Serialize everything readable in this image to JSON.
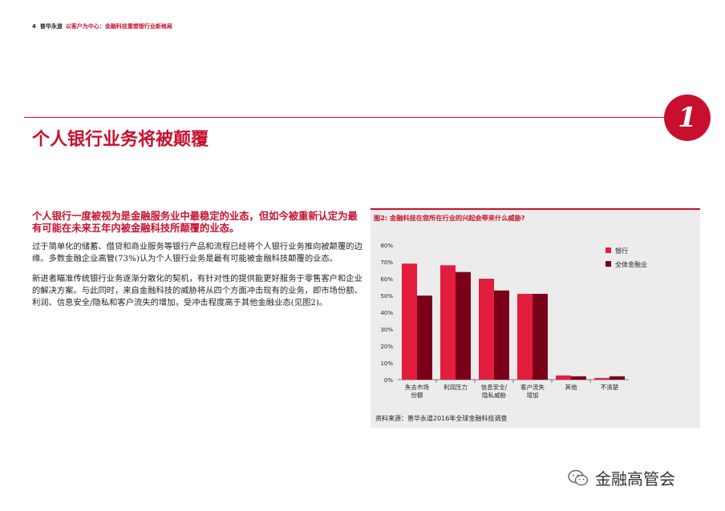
{
  "header": {
    "page_number": "4",
    "brand": "普华永道",
    "subtitle": "以客户为中心：金融科技重塑银行业新格局"
  },
  "section": {
    "number": "1",
    "title": "个人银行业务将被颠覆"
  },
  "body": {
    "lead": "个人银行一度被视为是金融服务业中最稳定的业态，但如今被重新认定为最有可能在未来五年内被金融科技所颠覆的业态。",
    "paragraphs": [
      "过于简单化的储蓄、借贷和商业服务等银行产品和流程已经将个人银行业务推向被颠覆的边缘。多数金融企业高管(73%)认为个人银行业务是最有可能被金融科技颠覆的业态。",
      "新进者瞄准传统银行业务逐渐分散化的契机，有针对性的提供能更好服务于零售客户和企业的解决方案。与此同时，来自金融科技的威胁将从四个方面冲击现有的业务，即市场份额、利润、信息安全/隐私和客户流失的增加，受冲击程度高于其他金融业态(见图2)。"
    ]
  },
  "figure": {
    "title": "图2: 金融科技在您所在行业的兴起会带来什么威胁?",
    "source": "资料来源：普华永道2016年全球金融科技调查"
  },
  "chart_data": {
    "type": "bar",
    "categories": [
      [
        "失去市场",
        "份额"
      ],
      [
        "利润压力"
      ],
      [
        "信息安全/",
        "隐私威胁"
      ],
      [
        "客户流失",
        "增加"
      ],
      [
        "其他"
      ],
      [
        "不清楚"
      ]
    ],
    "series": [
      {
        "name": "银行",
        "color": "#e31d3c",
        "values": [
          69,
          68,
          60,
          51,
          2.5,
          1
        ]
      },
      {
        "name": "全体金融业",
        "color": "#7a0019",
        "values": [
          50,
          64,
          53,
          51,
          2,
          2
        ]
      }
    ],
    "ylim": [
      0,
      80
    ],
    "yticks": [
      "0%",
      "10%",
      "20%",
      "30%",
      "40%",
      "50%",
      "60%",
      "70%",
      "80%"
    ],
    "grid": false,
    "legend": "top-right"
  },
  "watermark": {
    "text": "金融高管会",
    "icon": "wechat-icon"
  }
}
